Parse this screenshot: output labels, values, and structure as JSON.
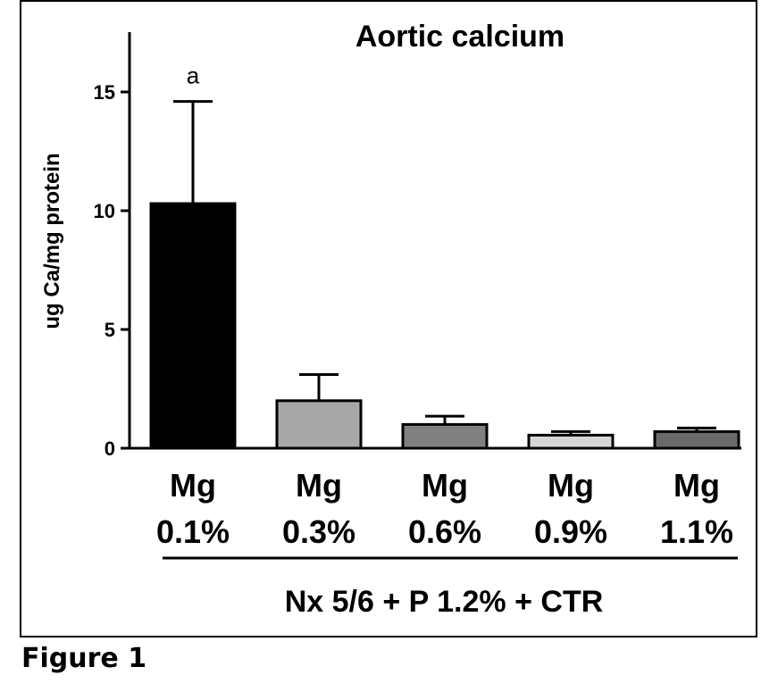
{
  "figure_label": "Figure 1",
  "chart_data": {
    "type": "bar",
    "title": "Aortic calcium",
    "ylabel": "ug Ca/mg protein",
    "xlabel": "",
    "group_label": "Nx 5/6 + P 1.2% + CTR",
    "ylim": [
      0,
      17.5
    ],
    "yticks": [
      0,
      5,
      10,
      15
    ],
    "categories": [
      {
        "line1": "Mg",
        "line2": "0.1%"
      },
      {
        "line1": "Mg",
        "line2": "0.3%"
      },
      {
        "line1": "Mg",
        "line2": "0.6%"
      },
      {
        "line1": "Mg",
        "line2": "0.9%"
      },
      {
        "line1": "Mg",
        "line2": "1.1%"
      }
    ],
    "values": [
      10.3,
      2.0,
      1.0,
      0.55,
      0.7
    ],
    "errors": [
      4.3,
      1.1,
      0.35,
      0.15,
      0.15
    ],
    "annotations": [
      "a",
      "",
      "",
      "",
      ""
    ],
    "colors": [
      "#000000",
      "#a8a8a8",
      "#808080",
      "#d6d6d6",
      "#6a6a6a"
    ],
    "grid": false
  }
}
